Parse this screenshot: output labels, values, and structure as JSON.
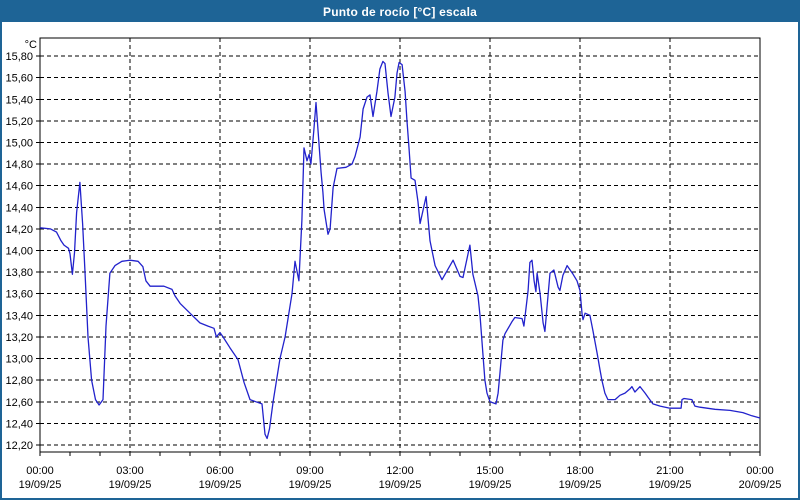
{
  "window": {
    "title": "Punto de rocío [°C] escala"
  },
  "colors": {
    "titlebar": "#1e6496",
    "frame": "#1e6496",
    "grid": "#000000",
    "line": "#2222cc",
    "background": "#ffffff"
  },
  "chart_data": {
    "type": "line",
    "title": "Punto de rocío [°C] escala",
    "y_unit": "°C",
    "ylabel": "",
    "xlabel": "",
    "grid": "dashed",
    "legend": "none",
    "ylim": [
      12.135,
      15.967
    ],
    "y_tick_start": 12.2,
    "y_tick_step": 0.2,
    "y_tick_labels": [
      "12,20",
      "12,40",
      "12,60",
      "12,80",
      "13,00",
      "13,20",
      "13,40",
      "13,60",
      "13,80",
      "14,00",
      "14,20",
      "14,40",
      "14,60",
      "14,80",
      "15,00",
      "15,20",
      "15,40",
      "15,60",
      "15,80"
    ],
    "x_hours": 24,
    "x_minor_every": 1,
    "x_major_every": 3,
    "x_tick_labels": [
      {
        "time": "00:00",
        "date": "19/09/25"
      },
      {
        "time": "03:00",
        "date": "19/09/25"
      },
      {
        "time": "06:00",
        "date": "19/09/25"
      },
      {
        "time": "09:00",
        "date": "19/09/25"
      },
      {
        "time": "12:00",
        "date": "19/09/25"
      },
      {
        "time": "15:00",
        "date": "19/09/25"
      },
      {
        "time": "18:00",
        "date": "19/09/25"
      },
      {
        "time": "21:00",
        "date": "19/09/25"
      },
      {
        "time": "00:00",
        "date": "20/09/25"
      }
    ],
    "line_color": "#2222cc",
    "series": [
      {
        "name": "Punto de rocío",
        "points": [
          [
            0.0,
            14.21
          ],
          [
            0.35,
            14.2
          ],
          [
            0.55,
            14.17
          ],
          [
            0.7,
            14.09
          ],
          [
            0.8,
            14.05
          ],
          [
            0.95,
            14.02
          ],
          [
            1.0,
            13.97
          ],
          [
            1.08,
            13.78
          ],
          [
            1.15,
            13.98
          ],
          [
            1.22,
            14.35
          ],
          [
            1.33,
            14.63
          ],
          [
            1.42,
            14.25
          ],
          [
            1.5,
            13.8
          ],
          [
            1.6,
            13.2
          ],
          [
            1.72,
            12.8
          ],
          [
            1.85,
            12.62
          ],
          [
            1.97,
            12.57
          ],
          [
            2.1,
            12.62
          ],
          [
            2.2,
            13.3
          ],
          [
            2.33,
            13.79
          ],
          [
            2.5,
            13.86
          ],
          [
            2.73,
            13.9
          ],
          [
            3.0,
            13.91
          ],
          [
            3.27,
            13.9
          ],
          [
            3.43,
            13.85
          ],
          [
            3.53,
            13.72
          ],
          [
            3.67,
            13.67
          ],
          [
            4.13,
            13.67
          ],
          [
            4.4,
            13.64
          ],
          [
            4.5,
            13.58
          ],
          [
            4.67,
            13.51
          ],
          [
            5.0,
            13.42
          ],
          [
            5.33,
            13.33
          ],
          [
            5.6,
            13.3
          ],
          [
            5.8,
            13.28
          ],
          [
            5.88,
            13.2
          ],
          [
            6.0,
            13.24
          ],
          [
            6.1,
            13.2
          ],
          [
            6.33,
            13.1
          ],
          [
            6.6,
            12.99
          ],
          [
            6.8,
            12.78
          ],
          [
            7.0,
            12.62
          ],
          [
            7.2,
            12.6
          ],
          [
            7.4,
            12.58
          ],
          [
            7.5,
            12.3
          ],
          [
            7.57,
            12.26
          ],
          [
            7.65,
            12.35
          ],
          [
            7.77,
            12.6
          ],
          [
            8.0,
            13.0
          ],
          [
            8.17,
            13.2
          ],
          [
            8.4,
            13.6
          ],
          [
            8.5,
            13.9
          ],
          [
            8.63,
            13.72
          ],
          [
            8.73,
            14.28
          ],
          [
            8.8,
            14.95
          ],
          [
            8.9,
            14.83
          ],
          [
            8.97,
            14.89
          ],
          [
            9.03,
            14.8
          ],
          [
            9.13,
            15.12
          ],
          [
            9.2,
            15.37
          ],
          [
            9.37,
            14.72
          ],
          [
            9.43,
            14.54
          ],
          [
            9.47,
            14.38
          ],
          [
            9.6,
            14.15
          ],
          [
            9.67,
            14.2
          ],
          [
            9.77,
            14.58
          ],
          [
            9.9,
            14.76
          ],
          [
            10.2,
            14.77
          ],
          [
            10.4,
            14.8
          ],
          [
            10.5,
            14.87
          ],
          [
            10.67,
            15.05
          ],
          [
            10.77,
            15.31
          ],
          [
            10.9,
            15.42
          ],
          [
            11.0,
            15.44
          ],
          [
            11.1,
            15.24
          ],
          [
            11.23,
            15.47
          ],
          [
            11.33,
            15.68
          ],
          [
            11.43,
            15.75
          ],
          [
            11.5,
            15.73
          ],
          [
            11.6,
            15.46
          ],
          [
            11.7,
            15.24
          ],
          [
            11.83,
            15.42
          ],
          [
            11.9,
            15.64
          ],
          [
            11.97,
            15.74
          ],
          [
            12.07,
            15.72
          ],
          [
            12.17,
            15.47
          ],
          [
            12.23,
            15.21
          ],
          [
            12.3,
            14.95
          ],
          [
            12.37,
            14.67
          ],
          [
            12.5,
            14.65
          ],
          [
            12.6,
            14.45
          ],
          [
            12.67,
            14.25
          ],
          [
            12.87,
            14.5
          ],
          [
            13.0,
            14.09
          ],
          [
            13.17,
            13.86
          ],
          [
            13.4,
            13.73
          ],
          [
            13.77,
            13.91
          ],
          [
            14.0,
            13.76
          ],
          [
            14.1,
            13.75
          ],
          [
            14.33,
            14.05
          ],
          [
            14.43,
            13.78
          ],
          [
            14.6,
            13.58
          ],
          [
            14.67,
            13.39
          ],
          [
            14.77,
            13.02
          ],
          [
            14.83,
            12.8
          ],
          [
            14.9,
            12.68
          ],
          [
            15.0,
            12.6
          ],
          [
            15.2,
            12.58
          ],
          [
            15.27,
            12.68
          ],
          [
            15.33,
            12.86
          ],
          [
            15.43,
            13.17
          ],
          [
            15.5,
            13.23
          ],
          [
            15.73,
            13.34
          ],
          [
            15.83,
            13.38
          ],
          [
            16.07,
            13.37
          ],
          [
            16.13,
            13.3
          ],
          [
            16.27,
            13.63
          ],
          [
            16.33,
            13.89
          ],
          [
            16.4,
            13.91
          ],
          [
            16.47,
            13.72
          ],
          [
            16.53,
            13.62
          ],
          [
            16.57,
            13.79
          ],
          [
            16.67,
            13.6
          ],
          [
            16.77,
            13.33
          ],
          [
            16.83,
            13.25
          ],
          [
            16.93,
            13.57
          ],
          [
            17.0,
            13.79
          ],
          [
            17.13,
            13.82
          ],
          [
            17.27,
            13.66
          ],
          [
            17.33,
            13.63
          ],
          [
            17.43,
            13.77
          ],
          [
            17.57,
            13.86
          ],
          [
            17.77,
            13.78
          ],
          [
            17.9,
            13.72
          ],
          [
            18.0,
            13.63
          ],
          [
            18.07,
            13.41
          ],
          [
            18.1,
            13.36
          ],
          [
            18.17,
            13.42
          ],
          [
            18.33,
            13.4
          ],
          [
            18.43,
            13.26
          ],
          [
            18.57,
            13.05
          ],
          [
            18.67,
            12.89
          ],
          [
            18.73,
            12.8
          ],
          [
            18.83,
            12.68
          ],
          [
            18.93,
            12.62
          ],
          [
            19.17,
            12.62
          ],
          [
            19.33,
            12.66
          ],
          [
            19.5,
            12.68
          ],
          [
            19.67,
            12.72
          ],
          [
            19.73,
            12.74
          ],
          [
            19.83,
            12.69
          ],
          [
            20.0,
            12.74
          ],
          [
            20.17,
            12.68
          ],
          [
            20.27,
            12.64
          ],
          [
            20.43,
            12.58
          ],
          [
            20.67,
            12.56
          ],
          [
            21.0,
            12.54
          ],
          [
            21.37,
            12.54
          ],
          [
            21.4,
            12.62
          ],
          [
            21.47,
            12.63
          ],
          [
            21.73,
            12.62
          ],
          [
            21.83,
            12.56
          ],
          [
            22.0,
            12.55
          ],
          [
            22.5,
            12.53
          ],
          [
            23.0,
            12.52
          ],
          [
            23.43,
            12.5
          ],
          [
            23.73,
            12.47
          ],
          [
            24.0,
            12.45
          ]
        ]
      }
    ]
  }
}
